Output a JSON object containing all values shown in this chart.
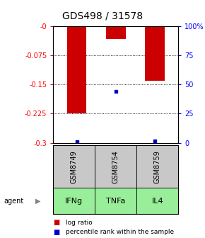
{
  "title": "GDS498 / 31578",
  "samples": [
    "GSM8749",
    "GSM8754",
    "GSM8759"
  ],
  "agents": [
    "IFNg",
    "TNFa",
    "IL4"
  ],
  "log_ratios": [
    -0.225,
    -0.032,
    -0.14
  ],
  "percentile_ranks": [
    1.0,
    44.0,
    1.5
  ],
  "ylim_left": [
    -0.3,
    0.0
  ],
  "ylim_right": [
    0,
    100
  ],
  "yticks_left": [
    0.0,
    -0.075,
    -0.15,
    -0.225,
    -0.3
  ],
  "yticks_right": [
    100,
    75,
    50,
    25,
    0
  ],
  "ytick_labels_left": [
    "-0",
    "-0.075",
    "-0.15",
    "-0.225",
    "-0.3"
  ],
  "ytick_labels_right": [
    "100%",
    "75",
    "50",
    "25",
    "0"
  ],
  "bar_color": "#cc0000",
  "percentile_color": "#0000cc",
  "sample_box_color": "#c8c8c8",
  "agent_color": "#99ee99",
  "legend_log_ratio": "log ratio",
  "legend_percentile": "percentile rank within the sample",
  "bar_width": 0.5,
  "title_fontsize": 10,
  "tick_fontsize": 7,
  "agent_fontsize": 8,
  "sample_fontsize": 7
}
